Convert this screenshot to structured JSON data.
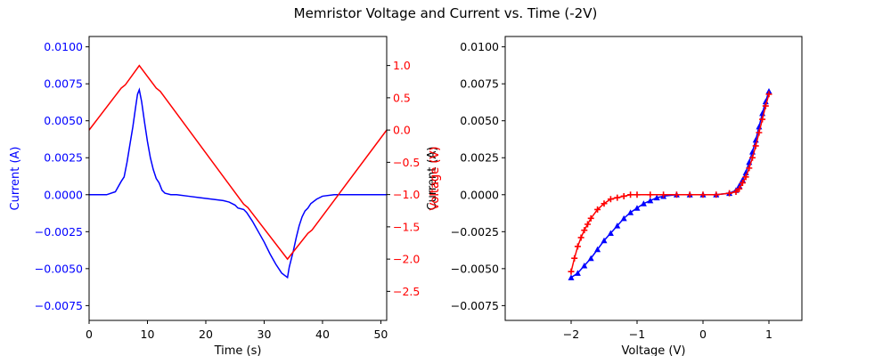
{
  "figure": {
    "title": "Memristor Voltage and Current vs. Time (-2V)",
    "colors": {
      "current": "#0000ff",
      "voltage": "#ff0000",
      "axis": "#000000",
      "background": "#ffffff"
    }
  },
  "chart_data": [
    {
      "type": "line",
      "panel": "left",
      "xlabel": "Time (s)",
      "ylabel": "Current (A)",
      "y2label": "Voltage (V)",
      "xlim": [
        0,
        51
      ],
      "ylim": [
        -0.0085,
        0.0107
      ],
      "y2lim": [
        -2.95,
        1.45
      ],
      "xticks": [
        0,
        10,
        20,
        30,
        40,
        50
      ],
      "xtick_labels": [
        "0",
        "10",
        "20",
        "30",
        "40",
        "50"
      ],
      "yticks": [
        -0.0075,
        -0.005,
        -0.0025,
        0,
        0.0025,
        0.005,
        0.0075,
        0.01
      ],
      "ytick_labels": [
        "−0.0075",
        "−0.0050",
        "−0.0025",
        "0.0000",
        "0.0025",
        "0.0050",
        "0.0075",
        "0.0100"
      ],
      "y2ticks": [
        -2.5,
        -2,
        -1.5,
        -1,
        -0.5,
        0,
        0.5,
        1
      ],
      "y2tick_labels": [
        "−2.5",
        "−2.0",
        "−1.5",
        "−1.0",
        "−0.5",
        "0.0",
        "0.5",
        "1.0"
      ],
      "series": [
        {
          "axis": "left",
          "color": "#0000ff",
          "x": [
            0,
            3,
            4.5,
            5.5,
            6,
            6.5,
            7,
            7.5,
            8,
            8.3,
            8.6,
            9,
            9.5,
            10,
            10.5,
            11,
            11.5,
            12,
            12.5,
            13,
            14,
            15,
            17,
            19,
            21,
            23,
            24,
            25,
            25.5,
            26.5,
            27,
            28,
            29,
            30,
            31,
            32,
            33,
            34,
            34.3,
            35,
            35.5,
            36,
            36.5,
            37,
            37.5,
            38,
            39,
            40,
            42,
            44,
            51
          ],
          "y": [
            0,
            0,
            0.0002,
            0.0009,
            0.0012,
            0.0022,
            0.0034,
            0.0046,
            0.006,
            0.0068,
            0.0071,
            0.0063,
            0.0049,
            0.0036,
            0.0025,
            0.0017,
            0.0011,
            0.0008,
            0.0003,
            0.0001,
            0,
            0,
            -0.0001,
            -0.0002,
            -0.0003,
            -0.0004,
            -0.0005,
            -0.0007,
            -0.0009,
            -0.001,
            -0.0012,
            -0.0018,
            -0.0025,
            -0.0032,
            -0.004,
            -0.0047,
            -0.0053,
            -0.0056,
            -0.0049,
            -0.0038,
            -0.0029,
            -0.0021,
            -0.0015,
            -0.0011,
            -0.0009,
            -0.0006,
            -0.0003,
            -0.0001,
            0,
            0,
            0
          ]
        },
        {
          "axis": "right",
          "color": "#ff0000",
          "x": [
            0,
            5.5,
            6.2,
            8.6,
            11.5,
            12.2,
            26.5,
            27.2,
            34,
            37.5,
            38.2,
            51
          ],
          "y": [
            0,
            0.65,
            0.7,
            1.0,
            0.65,
            0.6,
            -1.15,
            -1.2,
            -2.0,
            -1.6,
            -1.55,
            0
          ]
        }
      ]
    },
    {
      "type": "scatter",
      "panel": "right",
      "xlabel": "Voltage (V)",
      "ylabel": "Current (A)",
      "ylabel_overlay": "Voltage (V)",
      "xlim": [
        -3,
        1.5
      ],
      "ylim": [
        -0.0085,
        0.0107
      ],
      "xticks": [
        -2,
        -1,
        0,
        1
      ],
      "xtick_labels": [
        "−2",
        "−1",
        "0",
        "1"
      ],
      "yticks": [
        -0.0075,
        -0.005,
        -0.0025,
        0,
        0.0025,
        0.005,
        0.0075,
        0.01
      ],
      "ytick_labels": [
        "−0.0075",
        "−0.0050",
        "−0.0025",
        "0.0000",
        "0.0025",
        "0.0050",
        "0.0075",
        "0.0100"
      ],
      "series": [
        {
          "color": "#0000ff",
          "marker": "triangle",
          "x": [
            -2,
            -1.9,
            -1.8,
            -1.7,
            -1.6,
            -1.5,
            -1.4,
            -1.3,
            -1.2,
            -1.1,
            -1.0,
            -0.9,
            -0.8,
            -0.7,
            -0.6,
            -0.4,
            -0.2,
            0,
            0.2,
            0.4,
            0.5,
            0.55,
            0.6,
            0.65,
            0.7,
            0.75,
            0.8,
            0.85,
            0.9,
            0.95,
            1.0
          ],
          "y": [
            -0.0056,
            -0.0053,
            -0.0048,
            -0.0043,
            -0.0037,
            -0.0031,
            -0.0026,
            -0.0021,
            -0.0016,
            -0.0012,
            -0.0009,
            -0.0006,
            -0.0004,
            -0.0002,
            -0.0001,
            0,
            0,
            0,
            0,
            0.0001,
            0.0003,
            0.0006,
            0.001,
            0.0015,
            0.0022,
            0.0029,
            0.0037,
            0.0046,
            0.0055,
            0.0063,
            0.007
          ]
        },
        {
          "color": "#ff0000",
          "marker": "plus",
          "x": [
            -2,
            -1.95,
            -1.9,
            -1.85,
            -1.8,
            -1.75,
            -1.7,
            -1.6,
            -1.5,
            -1.4,
            -1.3,
            -1.2,
            -1.1,
            -1.0,
            -0.8,
            -0.6,
            -0.4,
            -0.2,
            0,
            0.2,
            0.4,
            0.5,
            0.55,
            0.6,
            0.65,
            0.7,
            0.75,
            0.8,
            0.85,
            0.9,
            0.95,
            1.0
          ],
          "y": [
            -0.0052,
            -0.0043,
            -0.0035,
            -0.0029,
            -0.0024,
            -0.002,
            -0.0016,
            -0.001,
            -0.0006,
            -0.0003,
            -0.0002,
            -0.0001,
            0,
            0,
            0,
            0,
            0,
            0,
            0,
            0,
            0.0001,
            0.0002,
            0.0004,
            0.0008,
            0.0012,
            0.0018,
            0.0025,
            0.0033,
            0.0042,
            0.0051,
            0.006,
            0.0068
          ]
        }
      ]
    }
  ]
}
